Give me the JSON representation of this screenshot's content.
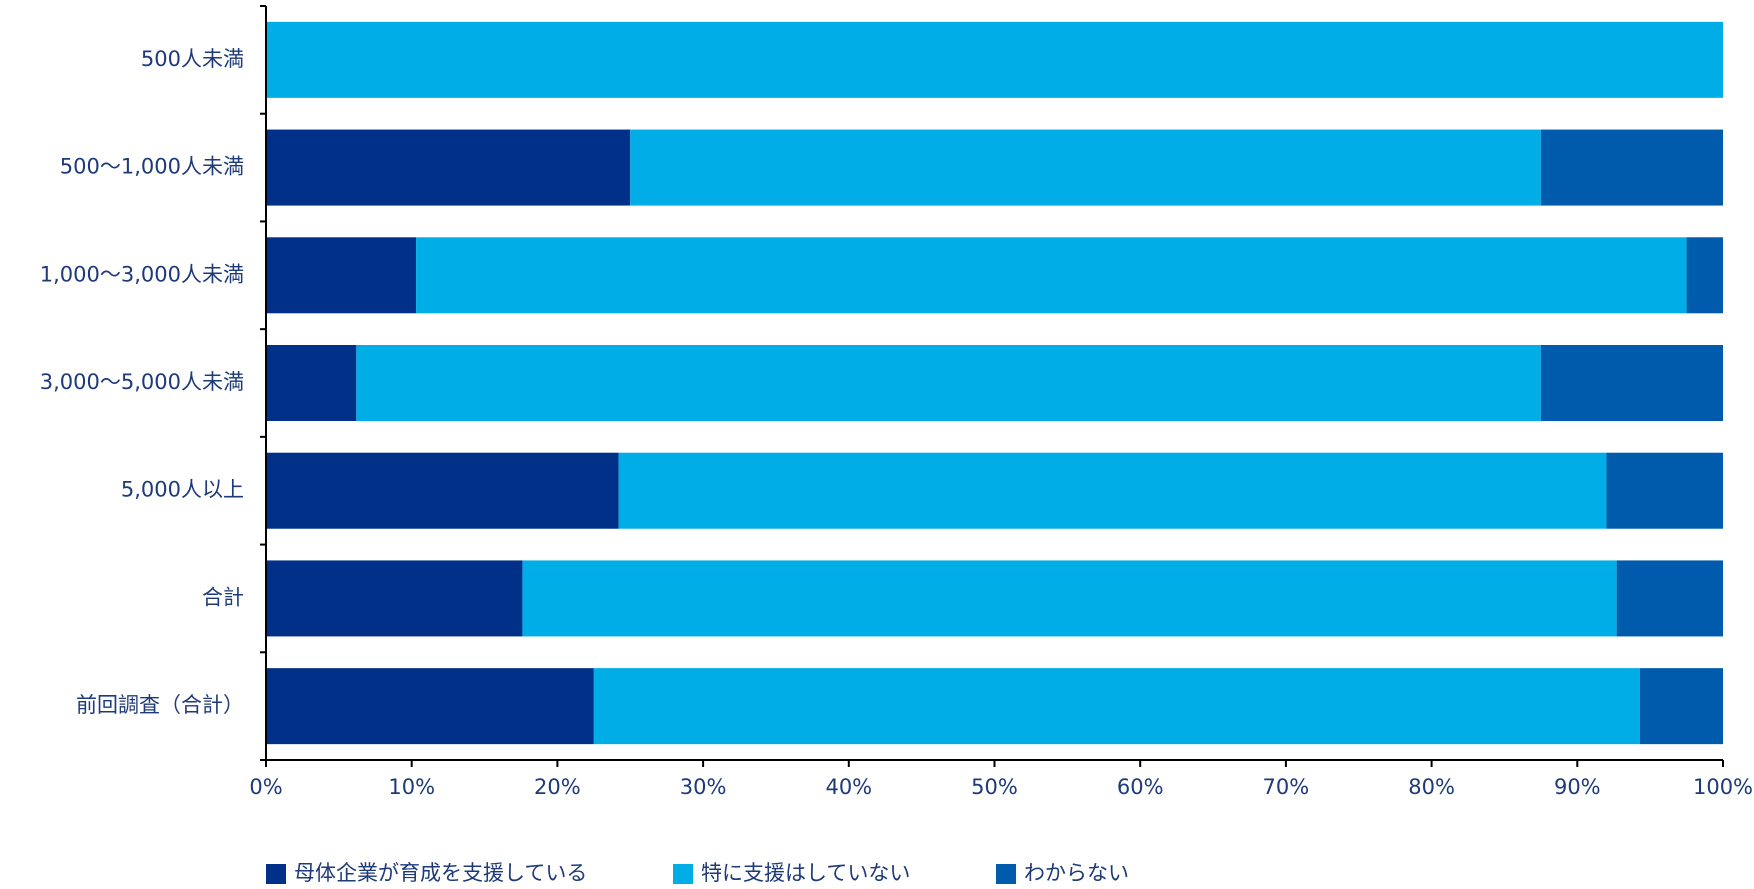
{
  "chart_data": {
    "type": "stacked-bar-horizontal",
    "categories": [
      "500人未満",
      "500〜1,000人未満",
      "1,000〜3,000人未満",
      "3,000〜5,000人未満",
      "5,000人以上",
      "合計",
      "前回調査（合計）"
    ],
    "series": [
      {
        "name": "母体企業が育成を支援している",
        "color": "#003087",
        "values": [
          0,
          25,
          10.3,
          6.2,
          24.2,
          17.6,
          22.5
        ]
      },
      {
        "name": "特に支援はしていない",
        "color": "#00ade6",
        "values": [
          100,
          62.5,
          87.2,
          81.3,
          67.8,
          75.1,
          71.8
        ]
      },
      {
        "name": "わからない",
        "color": "#005bac",
        "values": [
          0,
          12.5,
          2.5,
          12.5,
          8,
          7.3,
          5.7
        ]
      }
    ],
    "xlim": [
      0,
      100
    ],
    "xticks": [
      {
        "value": 0,
        "label": "0%"
      },
      {
        "value": 10,
        "label": "10%"
      },
      {
        "value": 20,
        "label": "20%"
      },
      {
        "value": 30,
        "label": "30%"
      },
      {
        "value": 40,
        "label": "40%"
      },
      {
        "value": 50,
        "label": "50%"
      },
      {
        "value": 60,
        "label": "60%"
      },
      {
        "value": 70,
        "label": "70%"
      },
      {
        "value": 80,
        "label": "80%"
      },
      {
        "value": 90,
        "label": "90%"
      },
      {
        "value": 100,
        "label": "100%"
      }
    ],
    "legend": "bottom"
  }
}
